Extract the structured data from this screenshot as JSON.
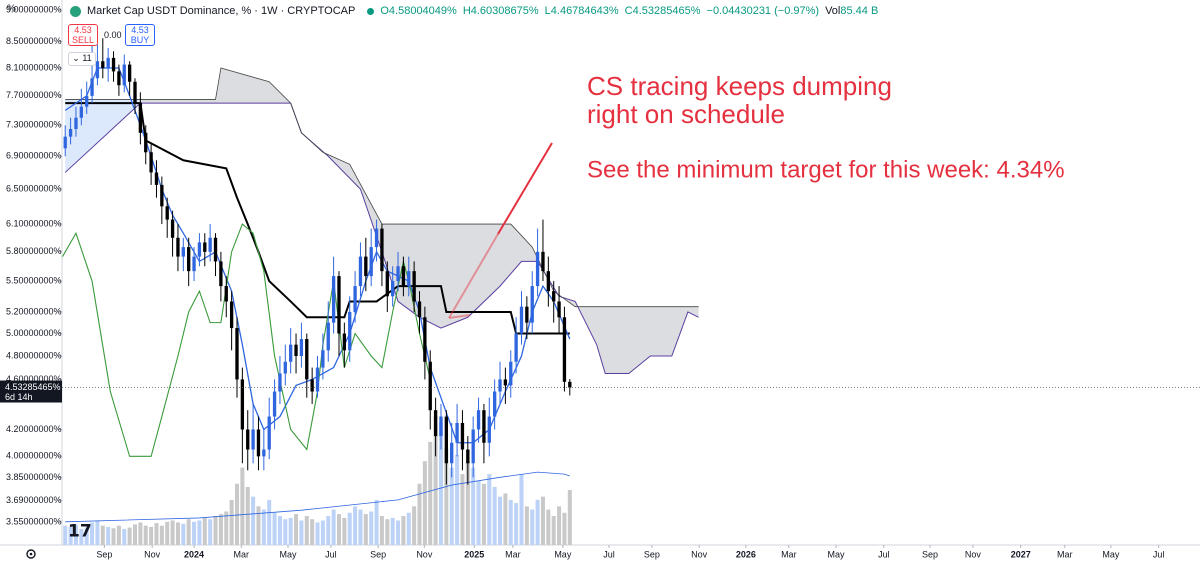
{
  "header": {
    "axis_unit": "%",
    "title": "Market Cap USDT Dominance, % · 1W · CRYPTOCAP",
    "open": "O4.58004049%",
    "high": "H4.60308675%",
    "low": "L4.46784643%",
    "close": "C4.53285465%",
    "change": "−0.04430231 (−0.97%)",
    "volume_label": "Vol",
    "volume": "85.44 B",
    "sell_price": "4.53",
    "sell": "SELL",
    "spread": "0.00",
    "buy_price": "4.53",
    "buy": "BUY",
    "indicators": "11"
  },
  "chart_data": {
    "type": "candlestick",
    "log_scale": true,
    "grid": false,
    "up_color": "#2f66e0",
    "down_color": "#000000",
    "x": [
      0,
      1,
      2,
      3,
      4,
      5,
      6,
      7,
      8,
      9,
      10,
      11,
      12,
      13,
      14,
      15,
      16,
      17,
      18,
      19,
      20,
      21,
      22,
      23,
      24,
      25,
      26,
      27,
      28,
      29,
      30,
      31,
      32,
      33,
      34,
      35,
      36,
      37,
      38,
      39,
      40,
      41,
      42,
      43,
      44,
      45,
      46,
      47,
      48,
      49,
      50,
      51,
      52,
      53,
      54,
      55,
      56,
      57,
      58,
      59,
      60,
      61,
      62,
      63,
      64,
      65,
      66,
      67,
      68,
      69,
      70,
      71,
      72,
      73,
      74,
      75,
      76,
      77,
      78,
      79,
      80,
      81,
      82,
      83,
      84,
      85,
      86,
      87,
      88,
      89,
      90,
      91,
      92,
      93,
      94
    ],
    "open": [
      7.0,
      7.15,
      7.25,
      7.4,
      7.55,
      7.7,
      7.95,
      8.2,
      8.1,
      8.25,
      8.05,
      7.85,
      8.15,
      7.9,
      7.6,
      7.2,
      6.95,
      6.7,
      6.55,
      6.3,
      6.15,
      5.95,
      5.75,
      5.85,
      5.6,
      5.75,
      5.9,
      5.8,
      5.95,
      5.7,
      5.45,
      5.3,
      5.05,
      4.6,
      4.2,
      4.05,
      4.2,
      4.0,
      4.05,
      4.3,
      4.5,
      4.65,
      4.75,
      4.9,
      4.8,
      4.95,
      4.6,
      4.5,
      4.7,
      4.85,
      5.1,
      5.55,
      5.0,
      4.85,
      5.2,
      5.45,
      5.75,
      5.55,
      5.85,
      6.05,
      5.6,
      5.35,
      5.5,
      5.65,
      5.45,
      5.6,
      5.3,
      5.15,
      4.75,
      4.35,
      4.15,
      4.3,
      3.95,
      4.1,
      4.25,
      4.05,
      3.95,
      4.2,
      4.35,
      4.1,
      4.3,
      4.5,
      4.6,
      4.55,
      4.75,
      5.0,
      5.25,
      5.1,
      5.45,
      5.8,
      5.6,
      5.4,
      5.3,
      5.15,
      4.58004049
    ],
    "high": [
      7.3,
      7.4,
      7.55,
      7.8,
      7.9,
      8.5,
      8.45,
      8.55,
      8.4,
      8.35,
      8.15,
      8.3,
      8.2,
      7.95,
      7.75,
      7.3,
      7.05,
      6.85,
      6.65,
      6.4,
      6.25,
      6.1,
      5.95,
      5.95,
      5.85,
      6.0,
      6.0,
      6.1,
      6.0,
      5.8,
      5.55,
      5.4,
      5.15,
      4.7,
      4.35,
      4.4,
      4.3,
      4.2,
      4.45,
      4.6,
      4.8,
      4.9,
      5.05,
      5.0,
      5.1,
      5.0,
      4.7,
      4.8,
      5.0,
      5.3,
      5.75,
      5.6,
      5.1,
      5.35,
      5.6,
      5.9,
      5.95,
      6.05,
      6.15,
      6.1,
      5.7,
      5.65,
      5.8,
      5.75,
      5.75,
      5.7,
      5.4,
      5.25,
      4.85,
      4.45,
      4.4,
      4.35,
      4.25,
      4.4,
      4.35,
      4.15,
      4.3,
      4.45,
      4.4,
      4.45,
      4.6,
      4.75,
      4.7,
      4.85,
      5.15,
      5.4,
      5.35,
      5.6,
      6.05,
      6.15,
      5.75,
      5.5,
      5.45,
      5.25,
      4.60308675
    ],
    "low": [
      6.9,
      7.05,
      7.15,
      7.3,
      7.45,
      7.6,
      7.85,
      7.95,
      7.9,
      7.9,
      7.7,
      7.75,
      7.7,
      7.45,
      7.05,
      6.8,
      6.55,
      6.4,
      6.1,
      5.95,
      5.75,
      5.6,
      5.6,
      5.45,
      5.5,
      5.65,
      5.65,
      5.7,
      5.55,
      5.3,
      5.15,
      4.85,
      4.45,
      3.95,
      3.9,
      3.95,
      3.9,
      3.9,
      3.98,
      4.2,
      4.4,
      4.55,
      4.65,
      4.65,
      4.7,
      4.45,
      4.4,
      4.45,
      4.6,
      4.75,
      5.0,
      4.8,
      4.7,
      4.75,
      5.1,
      5.35,
      5.4,
      5.45,
      5.7,
      5.45,
      5.2,
      5.25,
      5.4,
      5.35,
      5.35,
      5.2,
      5.0,
      4.6,
      4.2,
      4.0,
      4.05,
      3.8,
      3.85,
      4.0,
      3.9,
      3.8,
      3.85,
      4.1,
      3.95,
      4.0,
      4.2,
      4.4,
      4.4,
      4.45,
      4.65,
      4.9,
      4.95,
      5.0,
      5.35,
      5.5,
      5.25,
      5.1,
      5.0,
      4.5,
      4.46784643
    ],
    "close": [
      7.15,
      7.25,
      7.4,
      7.55,
      7.7,
      7.95,
      8.2,
      8.1,
      8.25,
      8.05,
      7.85,
      8.15,
      7.9,
      7.6,
      7.2,
      6.95,
      6.7,
      6.55,
      6.3,
      6.15,
      5.95,
      5.75,
      5.85,
      5.6,
      5.75,
      5.9,
      5.8,
      5.95,
      5.7,
      5.45,
      5.3,
      5.05,
      4.6,
      4.2,
      4.05,
      4.2,
      4.0,
      4.05,
      4.3,
      4.5,
      4.65,
      4.75,
      4.9,
      4.8,
      4.95,
      4.6,
      4.5,
      4.7,
      4.85,
      5.1,
      5.55,
      5.0,
      4.85,
      5.2,
      5.45,
      5.75,
      5.55,
      5.85,
      6.05,
      5.6,
      5.35,
      5.5,
      5.65,
      5.45,
      5.6,
      5.3,
      5.15,
      4.75,
      4.35,
      4.15,
      4.3,
      3.95,
      4.1,
      4.25,
      4.05,
      3.95,
      4.2,
      4.35,
      4.1,
      4.3,
      4.5,
      4.6,
      4.55,
      4.75,
      5.0,
      5.25,
      5.1,
      5.45,
      5.8,
      5.6,
      5.4,
      5.3,
      5.15,
      4.58,
      4.53285465
    ],
    "ylim": [
      3.405,
      9.165
    ],
    "yticks": [
      {
        "value": 9.0,
        "label": "9.00000000%"
      },
      {
        "value": 8.5,
        "label": "8.50000000%"
      },
      {
        "value": 8.1,
        "label": "8.10000000%"
      },
      {
        "value": 7.7,
        "label": "7.70000000%"
      },
      {
        "value": 7.3,
        "label": "7.30000000%"
      },
      {
        "value": 6.9,
        "label": "6.90000000%"
      },
      {
        "value": 6.5,
        "label": "6.50000000%"
      },
      {
        "value": 6.1,
        "label": "6.10000000%"
      },
      {
        "value": 5.8,
        "label": "5.80000000%"
      },
      {
        "value": 5.5,
        "label": "5.50000000%"
      },
      {
        "value": 5.2,
        "label": "5.20000000%"
      },
      {
        "value": 5.0,
        "label": "5.00000000%"
      },
      {
        "value": 4.8,
        "label": "4.80000000%"
      },
      {
        "value": 4.6,
        "label": "4.60000000%"
      },
      {
        "value": 4.2,
        "label": "4.20000000%"
      },
      {
        "value": 4.0,
        "label": "4.00000000%"
      },
      {
        "value": 3.85,
        "label": "3.85000000%"
      },
      {
        "value": 3.69,
        "label": "3.69000000%"
      },
      {
        "value": 3.55,
        "label": "3.55000000%"
      }
    ],
    "xlim": [
      -0.6,
      211.4
    ],
    "xticks": [
      {
        "value": 7.3,
        "label": "Sep"
      },
      {
        "value": 16.2,
        "label": "Nov"
      },
      {
        "value": 24.0,
        "label": "2024"
      },
      {
        "value": 32.8,
        "label": "Mar"
      },
      {
        "value": 41.5,
        "label": "May"
      },
      {
        "value": 49.5,
        "label": "Jul"
      },
      {
        "value": 58.3,
        "label": "Sep"
      },
      {
        "value": 66.9,
        "label": "Nov"
      },
      {
        "value": 76.2,
        "label": "2025"
      },
      {
        "value": 83.4,
        "label": "Mar"
      },
      {
        "value": 92.7,
        "label": "May"
      },
      {
        "value": 101.3,
        "label": "Jul"
      },
      {
        "value": 109.3,
        "label": "Sep"
      },
      {
        "value": 118.1,
        "label": "Nov"
      },
      {
        "value": 126.8,
        "label": "2026"
      },
      {
        "value": 134.8,
        "label": "Mar"
      },
      {
        "value": 143.6,
        "label": "May"
      },
      {
        "value": 152.5,
        "label": "Jul"
      },
      {
        "value": 161.1,
        "label": "Sep"
      },
      {
        "value": 169.1,
        "label": "Nov"
      },
      {
        "value": 178.0,
        "label": "2027"
      },
      {
        "value": 186.2,
        "label": "Mar"
      },
      {
        "value": 194.8,
        "label": "May"
      },
      {
        "value": 203.7,
        "label": "Jul"
      }
    ],
    "price_label": "4.53285465%",
    "countdown": "6d 14h",
    "cloud": {
      "fill": "#dcdde1",
      "fill_left": "#dce8fb",
      "left_until": 14,
      "lead_a": {
        "color": "#5b3fa0",
        "x": [
          0,
          14,
          28,
          42,
          44,
          49,
          55,
          59,
          62,
          66,
          70,
          75,
          81,
          85,
          88,
          92,
          95,
          99,
          100.6,
          105,
          109,
          113,
          116,
          118
        ],
        "values": [
          6.7,
          7.6,
          7.6,
          7.6,
          7.2,
          6.9,
          6.5,
          5.8,
          5.3,
          5.15,
          5.05,
          5.15,
          5.45,
          5.7,
          5.7,
          5.35,
          5.3,
          4.9,
          4.65,
          4.65,
          4.8,
          4.8,
          5.2,
          5.15
        ]
      },
      "lead_b": {
        "color": "#444444",
        "x": [
          0,
          14,
          28,
          29,
          38,
          42,
          44,
          48,
          53,
          59,
          83,
          87,
          91,
          95,
          118
        ],
        "values": [
          7.65,
          7.65,
          7.65,
          8.1,
          7.9,
          7.6,
          7.2,
          6.95,
          6.8,
          6.1,
          6.1,
          5.85,
          5.4,
          5.25,
          5.25
        ]
      }
    },
    "series": [
      {
        "color": "#000000",
        "width": 2,
        "x": [
          0,
          14,
          15,
          22,
          30,
          32,
          34,
          36,
          38,
          42,
          45,
          52,
          53,
          58,
          62,
          70,
          71,
          83,
          84,
          94
        ],
        "values": [
          7.6,
          7.6,
          7.1,
          6.85,
          6.75,
          6.4,
          6.1,
          5.8,
          5.5,
          5.3,
          5.15,
          5.15,
          5.3,
          5.3,
          5.45,
          5.45,
          5.2,
          5.2,
          5.0,
          5.0
        ]
      },
      {
        "color": "#2f66e0",
        "width": 1.3,
        "x": [
          0,
          4,
          6,
          10,
          12,
          14,
          16,
          18,
          20,
          22,
          25,
          28,
          31,
          33,
          35,
          37,
          40,
          43,
          46,
          50,
          53,
          56,
          58,
          60,
          64,
          66,
          68,
          70,
          73,
          76,
          79,
          82,
          85,
          87,
          89,
          91,
          94
        ],
        "values": [
          7.5,
          7.7,
          8.1,
          8.1,
          7.7,
          7.3,
          6.9,
          6.5,
          6.2,
          6.0,
          5.7,
          5.8,
          5.4,
          4.9,
          4.4,
          4.2,
          4.3,
          4.55,
          4.6,
          4.7,
          5.0,
          5.5,
          5.8,
          5.6,
          5.5,
          5.2,
          4.7,
          4.45,
          4.1,
          4.1,
          4.2,
          4.5,
          4.8,
          5.2,
          5.45,
          5.3,
          4.95
        ]
      },
      {
        "color": "#3a9a3a",
        "width": 1.1,
        "x": [
          -0.5,
          2,
          5,
          8.4,
          12,
          16,
          18,
          21,
          23,
          25,
          27,
          29,
          31,
          33,
          35,
          37,
          39,
          42,
          45,
          47,
          48,
          50,
          52,
          54,
          57,
          59,
          61,
          63,
          64,
          66,
          68
        ],
        "values": [
          5.75,
          6.0,
          5.5,
          4.5,
          4.0,
          4.0,
          4.3,
          4.8,
          5.2,
          5.4,
          5.1,
          5.1,
          5.8,
          6.1,
          6.0,
          5.6,
          4.8,
          4.2,
          4.05,
          4.5,
          4.9,
          5.5,
          4.7,
          5.0,
          4.8,
          4.7,
          5.2,
          5.7,
          5.5,
          5.0,
          4.6
        ]
      }
    ],
    "volume": {
      "ylim": [
        0,
        830
      ],
      "up_color": "#bcd3f7",
      "down_color": "#c9c9c9",
      "values": [
        30,
        28,
        32,
        25,
        27,
        35,
        38,
        30,
        28,
        26,
        30,
        25,
        27,
        32,
        35,
        30,
        28,
        34,
        30,
        36,
        38,
        35,
        33,
        40,
        36,
        38,
        42,
        40,
        45,
        48,
        52,
        70,
        95,
        120,
        90,
        75,
        60,
        55,
        70,
        50,
        45,
        40,
        42,
        48,
        38,
        45,
        40,
        35,
        38,
        45,
        55,
        48,
        42,
        50,
        60,
        55,
        48,
        52,
        70,
        45,
        40,
        42,
        38,
        45,
        50,
        60,
        95,
        130,
        160,
        200,
        190,
        150,
        120,
        140,
        110,
        130,
        120,
        100,
        95,
        110,
        90,
        75,
        80,
        70,
        65,
        110,
        60,
        55,
        70,
        75,
        55,
        45,
        60,
        50,
        85.44
      ],
      "ma": {
        "color": "#2f66e0",
        "x": [
          0,
          25,
          44,
          62,
          72,
          81,
          88,
          93,
          94
        ],
        "values": [
          36,
          42,
          54,
          70,
          93,
          105,
          113,
          110,
          107
        ]
      }
    },
    "annotations": {
      "color": "#e5303f",
      "lines": [
        "CS tracing keeps dumping",
        "right on schedule",
        "See the minimum target for this week: 4.34%"
      ]
    }
  }
}
